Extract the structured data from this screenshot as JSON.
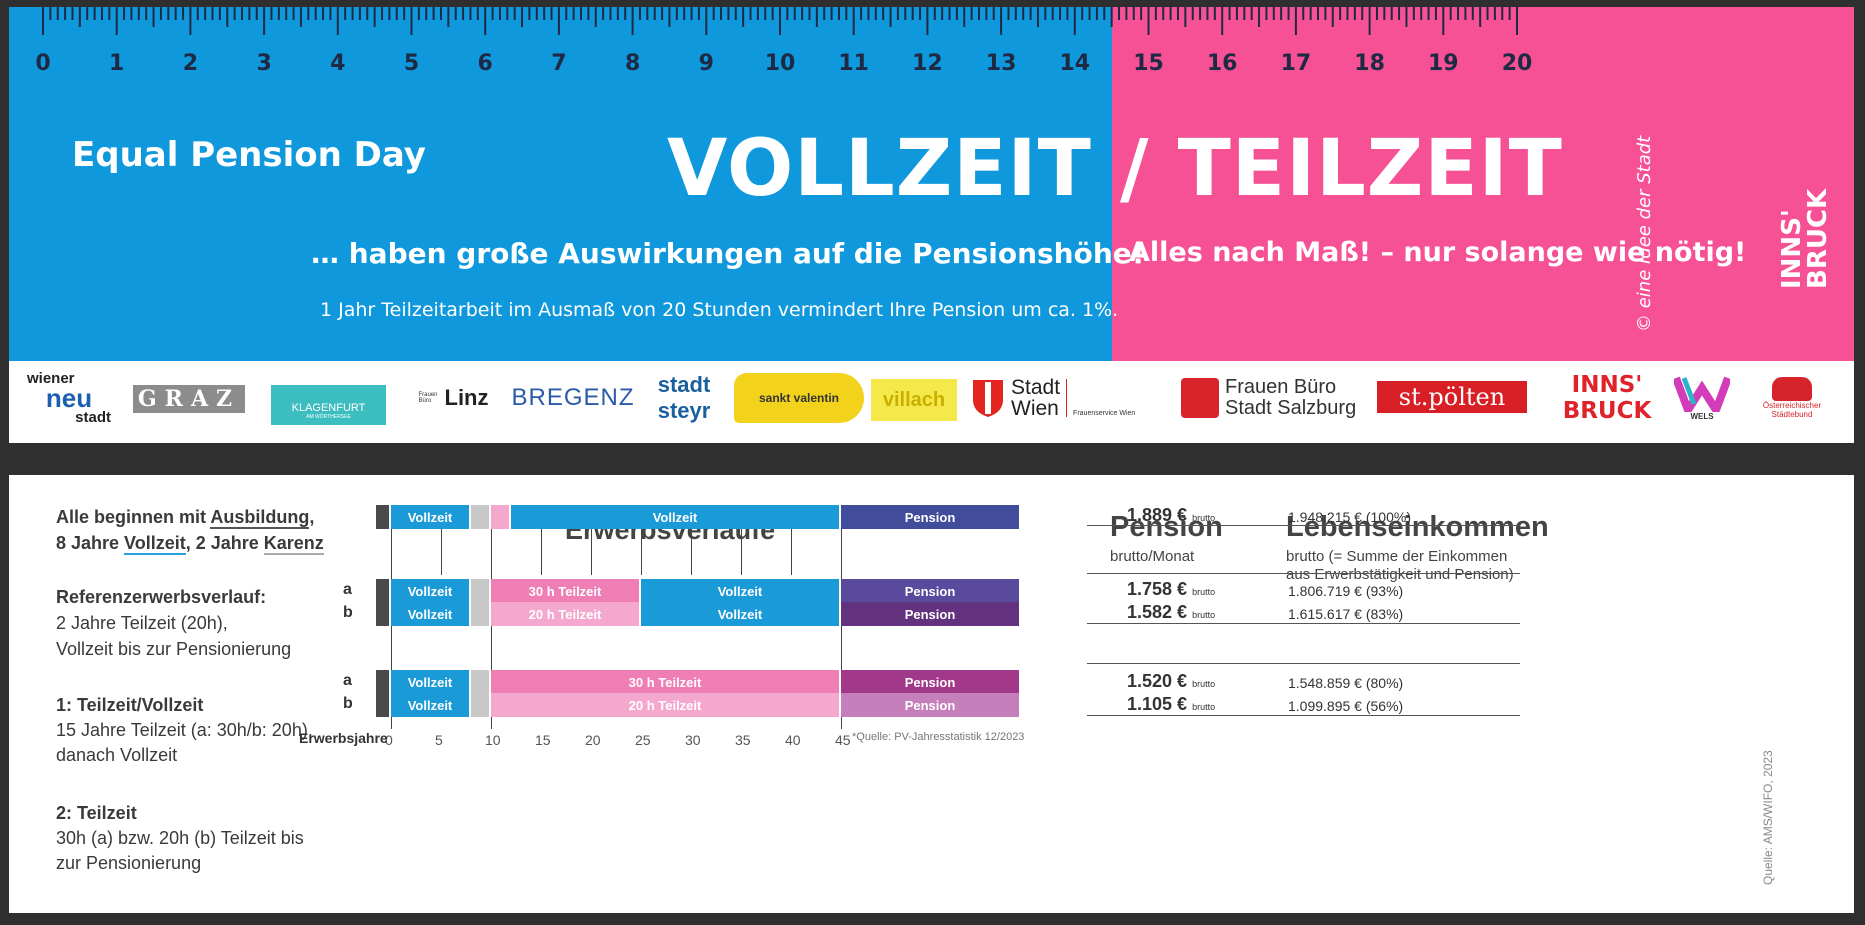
{
  "banner": {
    "ruler_numbers": [
      "0",
      "1",
      "2",
      "3",
      "4",
      "5",
      "6",
      "7",
      "8",
      "9",
      "10",
      "11",
      "12",
      "13",
      "14",
      "15",
      "16",
      "17",
      "18",
      "19",
      "20"
    ],
    "event": "Equal Pension Day",
    "headline_left": "VOLLZEIT",
    "headline_slash": "/",
    "headline_right": "TEILZEIT",
    "sub_left": "… haben große Auswirkungen auf die Pensionshöhe!",
    "sub_right": "Alles nach Maß! – nur solange wie nötig!",
    "note": "1 Jahr Teilzeitarbeit im Ausmaß von 20 Stunden vermindert Ihre Pension um ca. 1%.",
    "idea": "© eine Idee der Stadt",
    "city_logo_line1": "INNS'",
    "city_logo_line2": "BRUCK",
    "colors": {
      "blue": "#0f98dc",
      "pink": "#f55194"
    }
  },
  "logos": [
    {
      "l1": "wiener",
      "l2": "neu",
      "l3": "stadt"
    },
    {
      "text": "GRAZ"
    },
    {
      "text": "KLAGENFURT",
      "sub": "AM WÖRTHERSEE"
    },
    {
      "pre": "Frauen Büro",
      "text": "Linz"
    },
    {
      "text": "BREGENZ"
    },
    {
      "l1": "stadt",
      "l2": "steyr"
    },
    {
      "text": "sankt valentin"
    },
    {
      "text": "villach"
    },
    {
      "l1": "Stadt",
      "l2": "Wien",
      "sub": "Frauenservice Wien"
    },
    {
      "l1": "Frauen Büro",
      "l2": "Stadt Salzburg"
    },
    {
      "text": "st.pölten"
    },
    {
      "l1": "INNS'",
      "l2": "BRUCK"
    },
    {
      "text": "WELS"
    },
    {
      "l1": "Österreichischer",
      "l2": "Städtebund"
    }
  ],
  "left": {
    "intro_prefix": "Alle beginnen mit ",
    "intro_ausbildung": "Ausbildung",
    "intro_comma": ",",
    "intro2_prefix": "8 Jahre ",
    "intro2_vollzeit": "Vollzeit",
    "intro2_mid": ", 2 Jahre ",
    "intro2_karenz": "Karenz",
    "ref_title": "Referenzerwerbsverlauf:",
    "ref_l1": "2 Jahre Teilzeit (20h),",
    "ref_l2": "Vollzeit bis zur Pensionierung",
    "s1_title": "1: Teilzeit/Vollzeit",
    "s1_l1": "15 Jahre Teilzeit (a: 30h/b: 20h),",
    "s1_l2": "danach Vollzeit",
    "s2_title": "2: Teilzeit",
    "s2_l1": "30h (a) bzw. 20h (b) Teilzeit bis",
    "s2_l2": "zur Pensionierung"
  },
  "chart": {
    "title": "Erwerbsverläufe",
    "axis_label": "Erwerbsjahre",
    "ticks": [
      "0",
      "5",
      "10",
      "15",
      "20",
      "25",
      "30",
      "35",
      "40",
      "45"
    ],
    "source_note": "*Quelle: PV-Jahresstatistik 12/2023",
    "row_labels": {
      "a": "a",
      "b": "b"
    },
    "rows": [
      {
        "segments": [
          {
            "label": "",
            "start": -1.5,
            "end": 0,
            "color": "#4a4a4a"
          },
          {
            "label": "Vollzeit",
            "start": 0,
            "end": 8,
            "color": "#1b9ad8"
          },
          {
            "label": "",
            "start": 8,
            "end": 10,
            "color": "#c8c8c8"
          },
          {
            "label": "",
            "start": 10,
            "end": 12,
            "color": "#f5a8cd"
          },
          {
            "label": "Vollzeit",
            "start": 12,
            "end": 45,
            "color": "#1b9ad8"
          },
          {
            "label": "Pension",
            "start": 45,
            "end": 63,
            "color": "#414d9a"
          }
        ]
      },
      {
        "segments": [
          {
            "label": "",
            "start": -1.5,
            "end": 0,
            "color": "#4a4a4a"
          },
          {
            "label": "Vollzeit",
            "start": 0,
            "end": 8,
            "color": "#1b9ad8"
          },
          {
            "label": "",
            "start": 8,
            "end": 10,
            "color": "#c8c8c8"
          },
          {
            "label": "30 h Teilzeit",
            "start": 10,
            "end": 25,
            "color": "#ee7eb4"
          },
          {
            "label": "Vollzeit",
            "start": 25,
            "end": 45,
            "color": "#1b9ad8"
          },
          {
            "label": "Pension",
            "start": 45,
            "end": 63,
            "color": "#5a4a9e"
          }
        ]
      },
      {
        "segments": [
          {
            "label": "",
            "start": -1.5,
            "end": 0,
            "color": "#4a4a4a"
          },
          {
            "label": "Vollzeit",
            "start": 0,
            "end": 8,
            "color": "#1b9ad8"
          },
          {
            "label": "",
            "start": 8,
            "end": 10,
            "color": "#c8c8c8"
          },
          {
            "label": "20 h Teilzeit",
            "start": 10,
            "end": 25,
            "color": "#f5a8cd"
          },
          {
            "label": "Vollzeit",
            "start": 25,
            "end": 45,
            "color": "#1b9ad8"
          },
          {
            "label": "Pension",
            "start": 45,
            "end": 63,
            "color": "#63327f"
          }
        ]
      },
      {
        "segments": [
          {
            "label": "",
            "start": -1.5,
            "end": 0,
            "color": "#4a4a4a"
          },
          {
            "label": "Vollzeit",
            "start": 0,
            "end": 8,
            "color": "#1b9ad8"
          },
          {
            "label": "",
            "start": 8,
            "end": 10,
            "color": "#c8c8c8"
          },
          {
            "label": "30 h Teilzeit",
            "start": 10,
            "end": 45,
            "color": "#ee7eb4"
          },
          {
            "label": "Pension",
            "start": 45,
            "end": 63,
            "color": "#a2388a"
          }
        ]
      },
      {
        "segments": [
          {
            "label": "",
            "start": -1.5,
            "end": 0,
            "color": "#4a4a4a"
          },
          {
            "label": "Vollzeit",
            "start": 0,
            "end": 8,
            "color": "#1b9ad8"
          },
          {
            "label": "",
            "start": 8,
            "end": 10,
            "color": "#c8c8c8"
          },
          {
            "label": "20 h Teilzeit",
            "start": 10,
            "end": 45,
            "color": "#f5a8cd"
          },
          {
            "label": "Pension",
            "start": 45,
            "end": 63,
            "color": "#c57fba"
          }
        ]
      }
    ]
  },
  "pension": {
    "title": "Pension",
    "sub": "brutto/Monat",
    "unit": "brutto",
    "values": [
      "1.889 €",
      "1.758 €",
      "1.582 €",
      "1.520 €",
      "1.105 €"
    ]
  },
  "lifetime": {
    "title": "Lebenseinkommen",
    "sub1": "brutto (= Summe der Einkommen",
    "sub2": "aus Erwerbstätigkeit und Pension)",
    "values": [
      "1.948.215 € (100%)",
      "1.806.719 € (93%)",
      "1.615.617 € (83%)",
      "1.548.859 € (80%)",
      "1.099.895 € (56%)"
    ]
  },
  "source": "Quelle: AMS/WIFO, 2023"
}
